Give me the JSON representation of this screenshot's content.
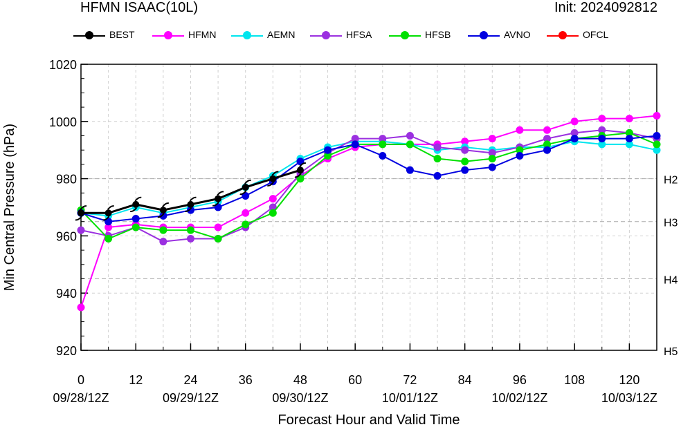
{
  "header": {
    "title": "HFMN ISAAC(10L)",
    "init": "Init: 2024092812"
  },
  "legend": [
    {
      "label": "BEST",
      "color": "#000000",
      "icon": "hurricane-icon"
    },
    {
      "label": "HFMN",
      "color": "#ff00ff"
    },
    {
      "label": "AEMN",
      "color": "#00e5ee"
    },
    {
      "label": "HFSA",
      "color": "#9b30e0"
    },
    {
      "label": "HFSB",
      "color": "#00e000"
    },
    {
      "label": "AVNO",
      "color": "#0000e0"
    },
    {
      "label": "OFCL",
      "color": "#ff0000"
    }
  ],
  "chart_data": {
    "type": "line",
    "xlabel": "Forecast Hour and Valid Time",
    "ylabel": "Min Central Pressure (hPa)",
    "xlim": [
      0,
      126
    ],
    "ylim": [
      920,
      1020
    ],
    "x_ticks": [
      0,
      12,
      24,
      36,
      48,
      60,
      72,
      84,
      96,
      108,
      120
    ],
    "x_ticks_minor": [
      6,
      18,
      30,
      42,
      54,
      66,
      78,
      90,
      102,
      114
    ],
    "x_date_labels": [
      {
        "x": 0,
        "label": "09/28/12Z"
      },
      {
        "x": 24,
        "label": "09/29/12Z"
      },
      {
        "x": 48,
        "label": "09/30/12Z"
      },
      {
        "x": 72,
        "label": "10/01/12Z"
      },
      {
        "x": 96,
        "label": "10/02/12Z"
      },
      {
        "x": 120,
        "label": "10/03/12Z"
      }
    ],
    "y_ticks": [
      920,
      940,
      960,
      980,
      1000,
      1020
    ],
    "grid": true,
    "reference_lines": [
      {
        "y": 980,
        "label": "H2"
      },
      {
        "y": 965,
        "label": "H3"
      },
      {
        "y": 945,
        "label": "H4"
      },
      {
        "y": 920,
        "label": "H5"
      }
    ],
    "series": [
      {
        "name": "BEST",
        "color": "#000000",
        "x": [
          0,
          6,
          12,
          18,
          24,
          30,
          36,
          42,
          48
        ],
        "values": [
          968,
          968,
          971,
          969,
          971,
          973,
          977,
          980,
          983
        ]
      },
      {
        "name": "HFMN",
        "color": "#ff00ff",
        "x": [
          0,
          6,
          12,
          18,
          24,
          30,
          36,
          42,
          48,
          54,
          60,
          66,
          72,
          78,
          84,
          90,
          96,
          102,
          108,
          114,
          120,
          126
        ],
        "values": [
          935,
          963,
          964,
          963,
          963,
          963,
          968,
          973,
          981,
          987,
          991,
          992,
          992,
          992,
          993,
          994,
          997,
          997,
          1000,
          1001,
          1001,
          1002
        ]
      },
      {
        "name": "AEMN",
        "color": "#00e5ee",
        "x": [
          0,
          6,
          12,
          18,
          24,
          30,
          36,
          42,
          48,
          54,
          60,
          66,
          72,
          78,
          84,
          90,
          96,
          102,
          108,
          114,
          120,
          126
        ],
        "values": [
          968,
          967,
          970,
          968,
          970,
          972,
          977,
          981,
          987,
          991,
          993,
          993,
          992,
          990,
          991,
          990,
          991,
          991,
          993,
          992,
          992,
          990
        ]
      },
      {
        "name": "HFSA",
        "color": "#9b30e0",
        "x": [
          0,
          6,
          12,
          18,
          24,
          30,
          36,
          42,
          48,
          54,
          60,
          66,
          72,
          78,
          84,
          90,
          96,
          102,
          108,
          114,
          120,
          126
        ],
        "values": [
          962,
          960,
          963,
          958,
          959,
          959,
          963,
          970,
          982,
          989,
          994,
          994,
          995,
          991,
          990,
          989,
          991,
          994,
          996,
          997,
          996,
          994
        ]
      },
      {
        "name": "HFSB",
        "color": "#00e000",
        "x": [
          0,
          6,
          12,
          18,
          24,
          30,
          36,
          42,
          48,
          54,
          60,
          66,
          72,
          78,
          84,
          90,
          96,
          102,
          108,
          114,
          120,
          126
        ],
        "values": [
          969,
          959,
          963,
          962,
          962,
          959,
          964,
          968,
          980,
          988,
          992,
          992,
          992,
          987,
          986,
          987,
          990,
          992,
          994,
          995,
          996,
          992
        ]
      },
      {
        "name": "AVNO",
        "color": "#0000e0",
        "x": [
          0,
          6,
          12,
          18,
          24,
          30,
          36,
          42,
          48,
          54,
          60,
          66,
          72,
          78,
          84,
          90,
          96,
          102,
          108,
          114,
          120,
          126
        ],
        "values": [
          968,
          965,
          966,
          967,
          969,
          970,
          974,
          979,
          986,
          990,
          992,
          988,
          983,
          981,
          983,
          984,
          988,
          990,
          994,
          994,
          994,
          995
        ]
      },
      {
        "name": "OFCL",
        "color": "#ff0000",
        "x": [],
        "values": []
      }
    ]
  }
}
